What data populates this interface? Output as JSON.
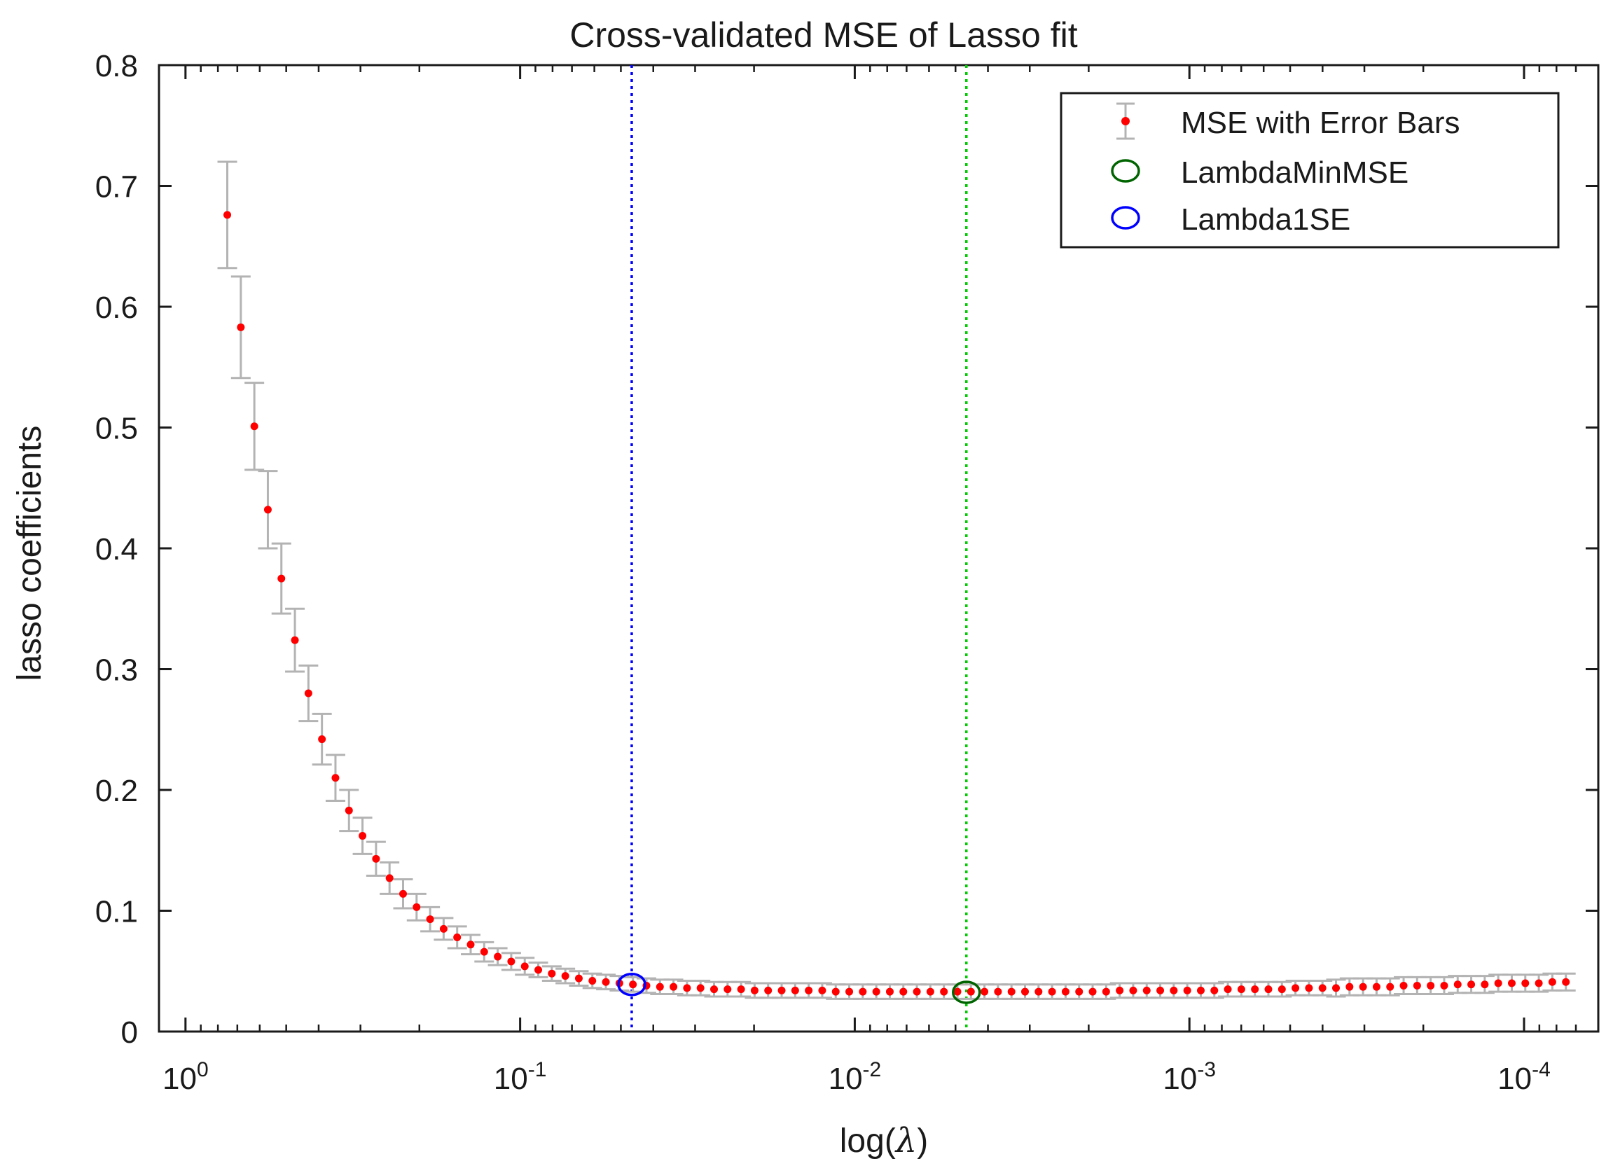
{
  "chart_data": {
    "type": "scatter",
    "title": "Cross-validated MSE of Lasso fit",
    "xlabel_prefix": "log(",
    "xlabel_symbol": "λ",
    "xlabel_suffix": ")",
    "ylabel": "lasso coefficients",
    "x_scale": "log",
    "x_reversed": true,
    "xlim": [
      1.2,
      6e-05
    ],
    "ylim": [
      0,
      0.8
    ],
    "x_ticks": [
      {
        "value": 1,
        "base": "10",
        "exp": "0"
      },
      {
        "value": 0.1,
        "base": "10",
        "exp": "-1"
      },
      {
        "value": 0.01,
        "base": "10",
        "exp": "-2"
      },
      {
        "value": 0.001,
        "base": "10",
        "exp": "-3"
      },
      {
        "value": 0.0001,
        "base": "10",
        "exp": "-4"
      }
    ],
    "y_ticks": [
      "0",
      "0.1",
      "0.2",
      "0.3",
      "0.4",
      "0.5",
      "0.6",
      "0.7",
      "0.8"
    ],
    "series": [
      {
        "name": "MSE with Error Bars",
        "color": "#ff0000",
        "errorbar_color": "#b3b3b3",
        "lambda_max": 0.75,
        "lambda_min": 7.5e-05,
        "mse": [
          0.676,
          0.583,
          0.501,
          0.432,
          0.375,
          0.324,
          0.28,
          0.242,
          0.21,
          0.183,
          0.162,
          0.143,
          0.127,
          0.114,
          0.103,
          0.093,
          0.085,
          0.078,
          0.072,
          0.066,
          0.062,
          0.058,
          0.054,
          0.051,
          0.048,
          0.046,
          0.044,
          0.042,
          0.041,
          0.04,
          0.039,
          0.038,
          0.037,
          0.037,
          0.036,
          0.036,
          0.035,
          0.035,
          0.035,
          0.034,
          0.034,
          0.034,
          0.034,
          0.034,
          0.034,
          0.033,
          0.033,
          0.033,
          0.033,
          0.033,
          0.033,
          0.033,
          0.033,
          0.033,
          0.033,
          0.033,
          0.033,
          0.033,
          0.033,
          0.033,
          0.033,
          0.033,
          0.033,
          0.033,
          0.033,
          0.033,
          0.034,
          0.034,
          0.034,
          0.034,
          0.034,
          0.034,
          0.034,
          0.034,
          0.035,
          0.035,
          0.035,
          0.035,
          0.035,
          0.036,
          0.036,
          0.036,
          0.036,
          0.037,
          0.037,
          0.037,
          0.037,
          0.038,
          0.038,
          0.038,
          0.038,
          0.039,
          0.039,
          0.039,
          0.04,
          0.04,
          0.04,
          0.04,
          0.041,
          0.041
        ],
        "se": [
          0.044,
          0.042,
          0.036,
          0.032,
          0.029,
          0.026,
          0.023,
          0.021,
          0.019,
          0.017,
          0.015,
          0.014,
          0.013,
          0.012,
          0.011,
          0.01,
          0.009,
          0.009,
          0.008,
          0.008,
          0.007,
          0.007,
          0.007,
          0.006,
          0.006,
          0.006,
          0.006,
          0.006,
          0.006,
          0.006,
          0.006,
          0.006,
          0.006,
          0.006,
          0.006,
          0.006,
          0.006,
          0.006,
          0.006,
          0.006,
          0.006,
          0.006,
          0.006,
          0.006,
          0.006,
          0.006,
          0.006,
          0.006,
          0.006,
          0.006,
          0.006,
          0.006,
          0.006,
          0.006,
          0.006,
          0.006,
          0.006,
          0.006,
          0.006,
          0.006,
          0.006,
          0.006,
          0.006,
          0.006,
          0.006,
          0.006,
          0.006,
          0.006,
          0.006,
          0.006,
          0.006,
          0.006,
          0.006,
          0.006,
          0.006,
          0.006,
          0.006,
          0.006,
          0.006,
          0.006,
          0.006,
          0.006,
          0.007,
          0.007,
          0.007,
          0.007,
          0.007,
          0.007,
          0.007,
          0.007,
          0.007,
          0.007,
          0.007,
          0.007,
          0.007,
          0.007,
          0.007,
          0.007,
          0.007,
          0.007
        ]
      },
      {
        "name": "LambdaMinMSE",
        "color": "#006400",
        "lambda": 0.00464,
        "mse": 0.0325
      },
      {
        "name": "Lambda1SE",
        "color": "#0000ff",
        "lambda": 0.0464,
        "mse": 0.039
      }
    ],
    "vlines": [
      {
        "lambda": 0.0464,
        "color": "#0000ff",
        "style": "dotted"
      },
      {
        "lambda": 0.00464,
        "color": "#00cc00",
        "style": "dotted"
      }
    ],
    "legend_position": "top-right",
    "grid": false
  }
}
